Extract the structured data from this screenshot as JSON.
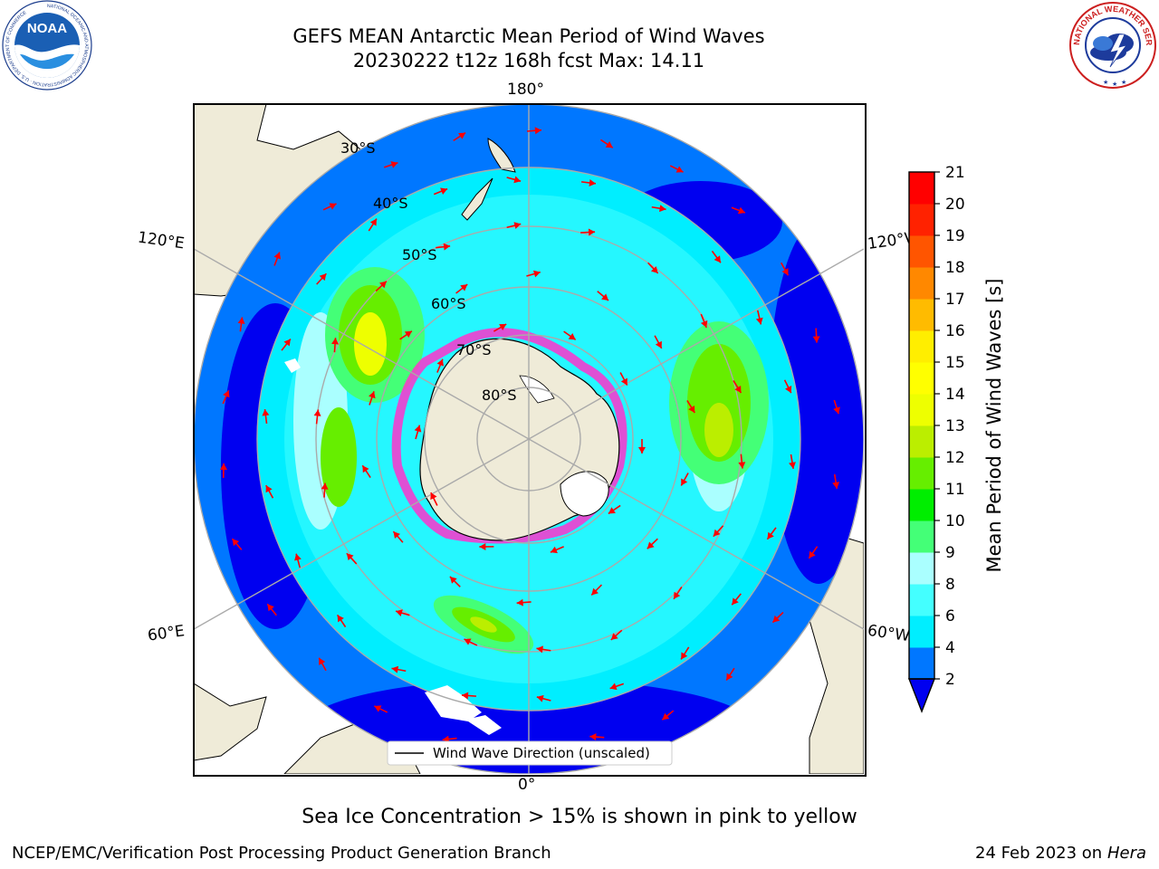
{
  "title": {
    "line1": "GEFS MEAN Antarctic Mean Period of Wind Waves",
    "line2": "20230222 t12z 168h fcst   Max: 14.11"
  },
  "logos": {
    "left": "NOAA",
    "left_ring_text": "NATIONAL OCEANIC AND ATMOSPHERIC ADMINISTRATION · U.S. DEPARTMENT OF COMMERCE",
    "right_ring_text": "NATIONAL WEATHER SERVICE"
  },
  "map": {
    "longitude_labels": {
      "top": "180°",
      "bottom": "0°",
      "upper_left": "120°E",
      "lower_left": "60°E",
      "upper_right": "120°W",
      "lower_right": "60°W"
    },
    "latitude_labels": [
      "30°S",
      "40°S",
      "50°S",
      "60°S",
      "70°S",
      "80°S"
    ],
    "legend": "Wind Wave Direction (unscaled)",
    "arrow_color": "#ff0000",
    "land_color": "#efebd8",
    "sea_ice_colors": [
      "#ff33cc",
      "#ff66ff",
      "#ffee00"
    ]
  },
  "colorbar": {
    "label": "Mean Period of Wind Waves [s]",
    "ticks": [
      "2",
      "4",
      "6",
      "8",
      "9",
      "10",
      "11",
      "12",
      "13",
      "14",
      "15",
      "16",
      "17",
      "18",
      "19",
      "20",
      "21"
    ],
    "colors": [
      "#0000f0",
      "#0077ff",
      "#00eeff",
      "#44ffff",
      "#aaffff",
      "#44ff77",
      "#00ee00",
      "#66ee00",
      "#bbee00",
      "#eeff00",
      "#ffff00",
      "#ffee00",
      "#ffbb00",
      "#ff8800",
      "#ff5500",
      "#ff2200",
      "#ff0000"
    ]
  },
  "footer": {
    "ice_note": "Sea Ice Concentration > 15% is shown in pink to yellow",
    "credit": "NCEP/EMC/Verification Post Processing Product Generation Branch",
    "date": "24 Feb 2023 on",
    "host": "Hera"
  }
}
